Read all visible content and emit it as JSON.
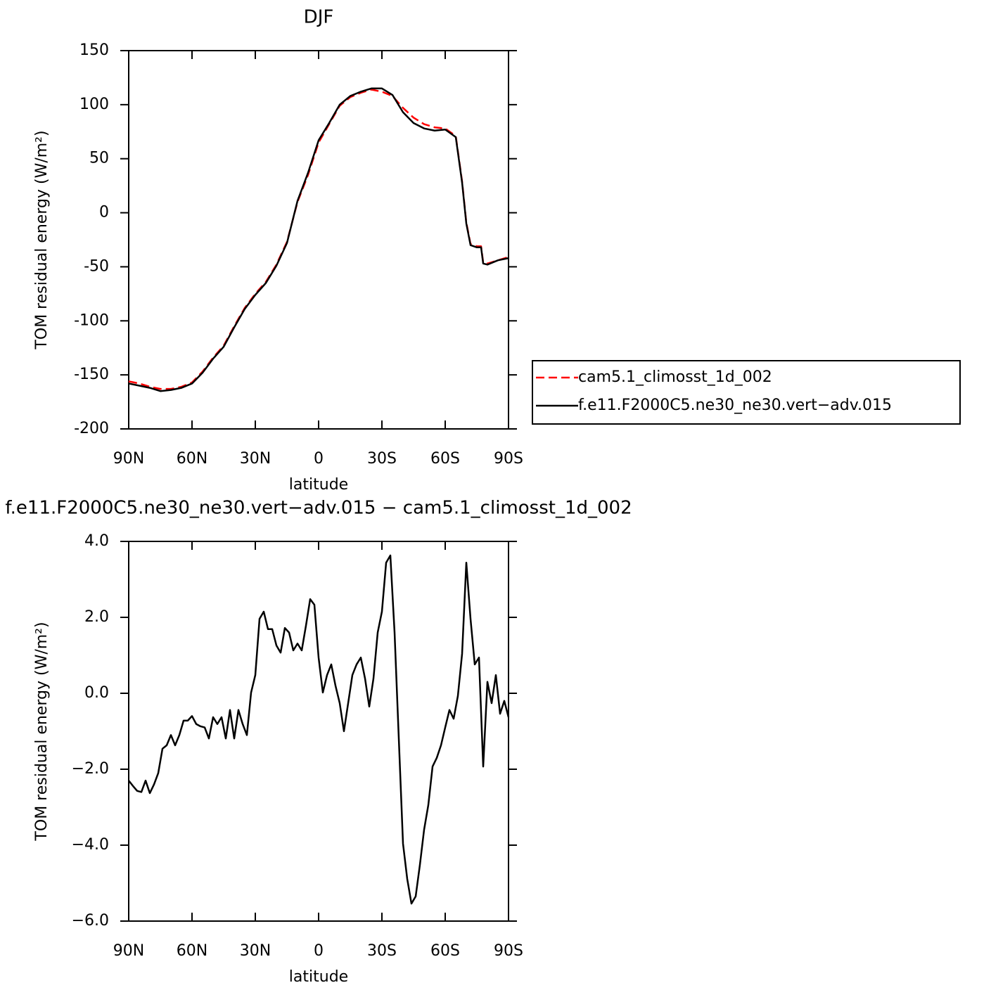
{
  "chart_data": [
    {
      "type": "line",
      "title": "DJF",
      "xlabel": "latitude",
      "ylabel": "TOM residual energy (W/m²)",
      "xlim": [
        90,
        -90
      ],
      "ylim": [
        -200,
        150
      ],
      "xticks": [
        {
          "value": 90,
          "label": "90N"
        },
        {
          "value": 60,
          "label": "60N"
        },
        {
          "value": 30,
          "label": "30N"
        },
        0,
        {
          "value": -30,
          "label": "30S"
        },
        {
          "value": -60,
          "label": "60S"
        },
        {
          "value": -90,
          "label": "90S"
        }
      ],
      "yticks": [
        150,
        100,
        50,
        0,
        -50,
        -100,
        -150,
        -200
      ],
      "legend": "outside-right",
      "x": [
        90,
        85,
        80,
        75,
        70,
        65,
        60,
        55,
        50,
        45,
        40,
        35,
        30,
        25,
        20,
        15,
        10,
        5,
        0,
        -5,
        -10,
        -15,
        -20,
        -25,
        -30,
        -35,
        -40,
        -45,
        -50,
        -55,
        -60,
        -65,
        -68,
        -70,
        -72,
        -75,
        -77,
        -78,
        -80,
        -85,
        -90
      ],
      "series": [
        {
          "name": "cam5.1_climosst_1d_002",
          "color": "#ff0000",
          "dashed": true,
          "values": [
            -156,
            -158,
            -161,
            -163,
            -163,
            -161,
            -157,
            -147,
            -134,
            -123,
            -105,
            -88,
            -75,
            -64,
            -48,
            -27,
            10,
            35,
            65,
            82,
            99,
            107,
            111,
            114,
            112,
            108,
            97,
            88,
            82,
            79,
            78,
            71,
            29,
            -9,
            -29,
            -31,
            -31,
            -46,
            -47,
            -44,
            -41
          ]
        },
        {
          "name": "f.e11.F2000C5.ne30_ne30.vert−adv.015",
          "color": "#000000",
          "dashed": false,
          "values": [
            -158,
            -160,
            -162,
            -165,
            -164,
            -162,
            -158,
            -148,
            -135,
            -124,
            -106,
            -89,
            -76,
            -65,
            -49,
            -28,
            11,
            37,
            67,
            83,
            100,
            108,
            112,
            115,
            115,
            109,
            93,
            83,
            78,
            76,
            77,
            70,
            28,
            -10,
            -30,
            -32,
            -32,
            -47,
            -48,
            -44,
            -42
          ]
        }
      ]
    },
    {
      "type": "line",
      "title": "f.e11.F2000C5.ne30_ne30.vert−adv.015 − cam5.1_climosst_1d_002",
      "xlabel": "latitude",
      "ylabel": "TOM residual energy (W/m²)",
      "xlim": [
        90,
        -90
      ],
      "ylim": [
        -6,
        4
      ],
      "xticks": [
        {
          "value": 90,
          "label": "90N"
        },
        {
          "value": 60,
          "label": "60N"
        },
        {
          "value": 30,
          "label": "30N"
        },
        0,
        {
          "value": -30,
          "label": "30S"
        },
        {
          "value": -60,
          "label": "60S"
        },
        {
          "value": -90,
          "label": "90S"
        }
      ],
      "yticks": [
        {
          "value": 4,
          "label": "4.0"
        },
        {
          "value": 2,
          "label": "2.0"
        },
        {
          "value": 0,
          "label": "0.0"
        },
        {
          "value": -2,
          "label": "−2.0"
        },
        {
          "value": -4,
          "label": "−4.0"
        },
        {
          "value": -6,
          "label": "−6.0"
        }
      ],
      "x": [
        90,
        88,
        86,
        84,
        82,
        80,
        78,
        76,
        74,
        72,
        70,
        68,
        66,
        64,
        62,
        60,
        58,
        56,
        54,
        52,
        50,
        48,
        46,
        44,
        42,
        40,
        38,
        36,
        34,
        32,
        30,
        28,
        26,
        24,
        22,
        20,
        18,
        16,
        14,
        12,
        10,
        8,
        6,
        4,
        2,
        0,
        -2,
        -4,
        -6,
        -8,
        -10,
        -12,
        -14,
        -16,
        -18,
        -20,
        -22,
        -24,
        -26,
        -28,
        -30,
        -32,
        -34,
        -36,
        -38,
        -40,
        -42,
        -44,
        -46,
        -48,
        -50,
        -52,
        -54,
        -56,
        -58,
        -60,
        -62,
        -64,
        -66,
        -68,
        -70,
        -72,
        -74,
        -76,
        -78,
        -80,
        -82,
        -84,
        -86,
        -88,
        -90
      ],
      "series": [
        {
          "color": "#000000",
          "dashed": false,
          "values": [
            -2.3,
            -2.44,
            -2.57,
            -2.6,
            -2.3,
            -2.63,
            -2.4,
            -2.1,
            -1.46,
            -1.37,
            -1.1,
            -1.37,
            -1.1,
            -0.72,
            -0.72,
            -0.6,
            -0.81,
            -0.87,
            -0.9,
            -1.19,
            -0.63,
            -0.81,
            -0.63,
            -1.19,
            -0.44,
            -1.19,
            -0.44,
            -0.81,
            -1.1,
            0.02,
            0.48,
            1.96,
            2.15,
            1.69,
            1.69,
            1.26,
            1.07,
            1.72,
            1.6,
            1.13,
            1.31,
            1.13,
            1.78,
            2.48,
            2.33,
            0.94,
            0.02,
            0.48,
            0.76,
            0.2,
            -0.26,
            -1.0,
            -0.26,
            0.48,
            0.76,
            0.94,
            0.39,
            -0.35,
            0.39,
            1.6,
            2.15,
            3.44,
            3.63,
            1.6,
            -1.19,
            -3.96,
            -4.89,
            -5.54,
            -5.35,
            -4.52,
            -3.59,
            -2.94,
            -1.93,
            -1.7,
            -1.37,
            -0.9,
            -0.44,
            -0.67,
            -0.07,
            1.04,
            3.44,
            1.96,
            0.76,
            0.94,
            -1.93,
            0.3,
            -0.26,
            0.48,
            -0.54,
            -0.2,
            -0.63
          ]
        }
      ]
    }
  ]
}
